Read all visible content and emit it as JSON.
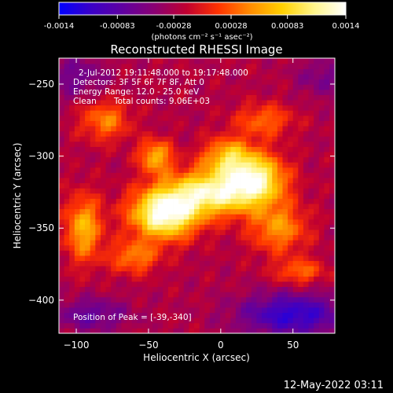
{
  "window": {
    "timestamp": "12-May-2022 03:11"
  },
  "colorbar": {
    "tick_labels": [
      "-0.0014",
      "-0.00083",
      "-0.00028",
      "0.00028",
      "0.00083",
      "0.0014"
    ],
    "tick_values": [
      -0.0014,
      -0.00083,
      -0.00028,
      0.00028,
      0.00083,
      0.0014
    ],
    "unit_label": "(photons cm⁻² s⁻¹ asec⁻²)",
    "range": [
      -0.0014,
      0.0014
    ]
  },
  "chart_data": {
    "type": "heatmap",
    "title": "Reconstructed RHESSI Image",
    "xlabel": "Heliocentric X (arcsec)",
    "ylabel": "Heliocentric Y (arcsec)",
    "xlim": [
      -112,
      79
    ],
    "ylim": [
      -423,
      -232
    ],
    "x_ticks": [
      -100,
      -50,
      0,
      50
    ],
    "y_ticks": [
      -250,
      -300,
      -350,
      -400
    ],
    "annotations": {
      "time_range": "2-Jul-2012 19:11:48.000 to 19:17:48.000",
      "detectors": "Detectors: 3F 5F 6F 7F 8F, Att 0",
      "energy_range": "Energy Range: 12.0 - 25.0 keV",
      "method": "Clean",
      "total_counts": "Total counts: 9.06E+03",
      "peak_position": "Position of Peak = [-39,-340]"
    },
    "peak": {
      "x": -39,
      "y": -340
    },
    "sources": [
      {
        "x": -39,
        "y": -340,
        "amp": 1.0,
        "sx": 16,
        "sy": 12
      },
      {
        "x": -5,
        "y": -325,
        "amp": 0.85,
        "sx": 22,
        "sy": 11
      },
      {
        "x": 25,
        "y": -315,
        "amp": 0.75,
        "sx": 14,
        "sy": 12
      },
      {
        "x": -45,
        "y": -300,
        "amp": 0.55,
        "sx": 8,
        "sy": 8
      },
      {
        "x": 5,
        "y": -300,
        "amp": 0.55,
        "sx": 12,
        "sy": 9
      },
      {
        "x": 40,
        "y": -350,
        "amp": 0.45,
        "sx": 14,
        "sy": 12
      },
      {
        "x": -95,
        "y": -350,
        "amp": 0.55,
        "sx": 9,
        "sy": 16
      },
      {
        "x": -80,
        "y": -275,
        "amp": 0.4,
        "sx": 12,
        "sy": 10
      },
      {
        "x": 30,
        "y": -275,
        "amp": 0.35,
        "sx": 14,
        "sy": 8
      },
      {
        "x": 55,
        "y": -380,
        "amp": 0.35,
        "sx": 12,
        "sy": 6
      },
      {
        "x": -60,
        "y": -370,
        "amp": 0.4,
        "sx": 12,
        "sy": 8
      }
    ],
    "negative_regions": [
      {
        "x": 50,
        "y": -410,
        "amp": -0.55,
        "sx": 25,
        "sy": 10
      },
      {
        "x": -90,
        "y": -410,
        "amp": -0.3,
        "sx": 18,
        "sy": 8
      },
      {
        "x": -100,
        "y": -245,
        "amp": -0.25,
        "sx": 15,
        "sy": 10
      },
      {
        "x": 70,
        "y": -245,
        "amp": -0.2,
        "sx": 12,
        "sy": 10
      }
    ],
    "colors": {
      "colormap": [
        "#0000ff",
        "#3a00c8",
        "#6000a0",
        "#8a0072",
        "#c00030",
        "#ff3300",
        "#ff8c00",
        "#ffd000",
        "#fff58a",
        "#ffffff"
      ],
      "background": "#000000",
      "frame": "#ffffff"
    }
  }
}
